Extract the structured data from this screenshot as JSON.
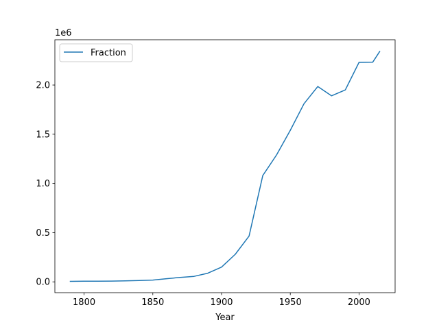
{
  "chart_data": {
    "type": "line",
    "xlabel": "Year",
    "ylabel": "",
    "y_offset_label": "1e6",
    "xlim": [
      1778.75,
      2026.25
    ],
    "ylim": [
      -0.11,
      2.46
    ],
    "xticks": [
      1800,
      1850,
      1900,
      1950,
      2000
    ],
    "xtick_labels": [
      "1800",
      "1850",
      "1900",
      "1950",
      "2000"
    ],
    "yticks": [
      0.0,
      0.5,
      1.0,
      1.5,
      2.0
    ],
    "ytick_labels": [
      "0.0",
      "0.5",
      "1.0",
      "1.5",
      "2.0"
    ],
    "legend_position": "top-left",
    "grid": false,
    "series": [
      {
        "name": "Fraction",
        "color": "#1f77b4",
        "x": [
          1790,
          1800,
          1810,
          1820,
          1830,
          1840,
          1850,
          1860,
          1870,
          1880,
          1890,
          1900,
          1910,
          1920,
          1930,
          1940,
          1950,
          1960,
          1970,
          1980,
          1990,
          2000,
          2010,
          2015
        ],
        "y": [
          0.005,
          0.006,
          0.007,
          0.008,
          0.01,
          0.013,
          0.018,
          0.032,
          0.045,
          0.056,
          0.088,
          0.15,
          0.28,
          0.465,
          1.08,
          1.29,
          1.54,
          1.81,
          1.985,
          1.89,
          1.95,
          2.23,
          2.232,
          2.34
        ]
      }
    ]
  }
}
